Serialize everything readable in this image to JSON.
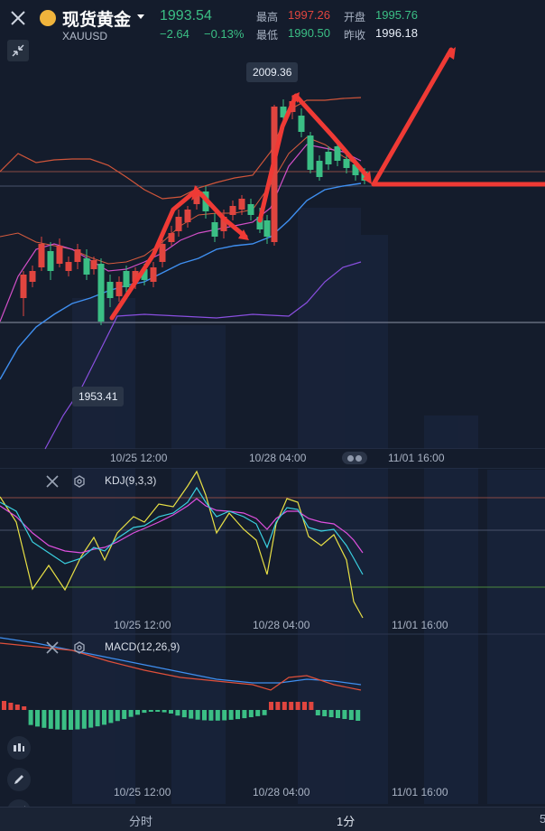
{
  "header": {
    "title": "现货黄金",
    "symbol": "XAUUSD",
    "price": "1993.54",
    "change": "−2.64",
    "change_pct": "−0.13%",
    "high_label": "最高",
    "high_value": "1997.26",
    "open_label": "开盘",
    "open_value": "1995.76",
    "low_label": "最低",
    "low_value": "1990.50",
    "prev_close_label": "昨收",
    "prev_close_value": "1996.18"
  },
  "chart": {
    "max_marker": "2009.36",
    "min_marker": "1953.41",
    "date_labels": [
      "10/25 12:00",
      "10/28 04:00",
      "11/01 16:00"
    ]
  },
  "kdj": {
    "label": "KDJ(9,3,3)"
  },
  "macd": {
    "label": "MACD(12,26,9)"
  },
  "tabs": {
    "minute": "分时",
    "one_min": "1分",
    "five_partial": "5"
  },
  "colors": {
    "up": "#e0453f",
    "down": "#3bbf85",
    "background": "#141c2c"
  }
}
